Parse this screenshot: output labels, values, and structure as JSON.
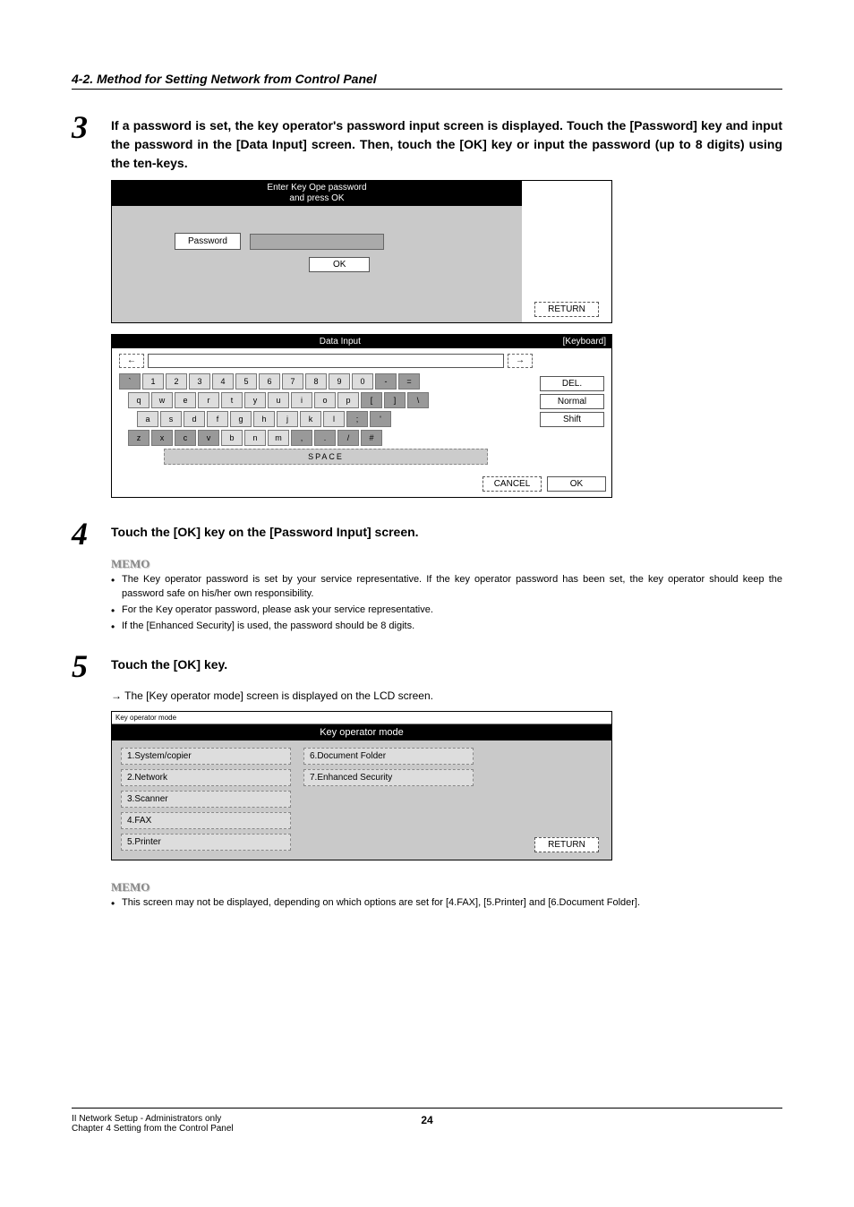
{
  "header": {
    "section_title": "4-2. Method for Setting Network from Control Panel"
  },
  "steps": {
    "s3": {
      "num": "3",
      "text": "If a password is set, the key operator's password input screen is displayed. Touch the [Password] key and input the password in the [Data Input] screen. Then, touch the [OK] key or input the password (up to 8 digits) using the ten-keys."
    },
    "s4": {
      "num": "4",
      "text": "Touch the [OK] key on the [Password Input] screen.",
      "memo_label": "MEMO",
      "memo_items": [
        "The Key operator password is set by your service representative. If the key operator password has been set, the key operator should keep the password safe on his/her own responsibility.",
        "For the Key operator password, please ask your service representative.",
        "If the [Enhanced Security] is used, the password should be 8 digits."
      ]
    },
    "s5": {
      "num": "5",
      "text": "Touch the [OK] key.",
      "arrow_text": "→  The [Key operator mode] screen is displayed on the LCD screen.",
      "memo_label": "MEMO",
      "memo_items": [
        "This screen may not be displayed, depending on which options are set for [4.FAX], [5.Printer] and [6.Document Folder]."
      ]
    }
  },
  "pw_panel": {
    "header_line1": "Enter Key Ope password",
    "header_line2": "and press OK",
    "label": "Password",
    "ok": "OK",
    "return_btn": "RETURN"
  },
  "kb_panel": {
    "title": "Data Input",
    "corner": "[Keyboard]",
    "left_arrow": "←",
    "right_arrow": "→",
    "row1": [
      "`",
      "1",
      "2",
      "3",
      "4",
      "5",
      "6",
      "7",
      "8",
      "9",
      "0",
      "-",
      "="
    ],
    "row2": [
      "q",
      "w",
      "e",
      "r",
      "t",
      "y",
      "u",
      "i",
      "o",
      "p",
      "[",
      "]",
      "\\"
    ],
    "row3": [
      "a",
      "s",
      "d",
      "f",
      "g",
      "h",
      "j",
      "k",
      "l",
      ";",
      "'"
    ],
    "row4": [
      "z",
      "x",
      "c",
      "v",
      "b",
      "n",
      "m",
      ",",
      ".",
      "/",
      "#"
    ],
    "space": "SPACE",
    "side": {
      "del": "DEL.",
      "normal": "Normal",
      "shift": "Shift"
    },
    "cancel": "CANCEL",
    "ok": "OK"
  },
  "kom_panel": {
    "topstrip": "Key operator mode",
    "header": "Key operator mode",
    "col1": [
      "1.System/copier",
      "2.Network",
      "3.Scanner",
      "4.FAX",
      "5.Printer"
    ],
    "col2": [
      "6.Document Folder",
      "7.Enhanced Security"
    ],
    "return_btn": "RETURN"
  },
  "footer": {
    "line1": "II Network Setup - Administrators only",
    "line2": "Chapter 4 Setting from the Control Panel",
    "page": "24"
  }
}
